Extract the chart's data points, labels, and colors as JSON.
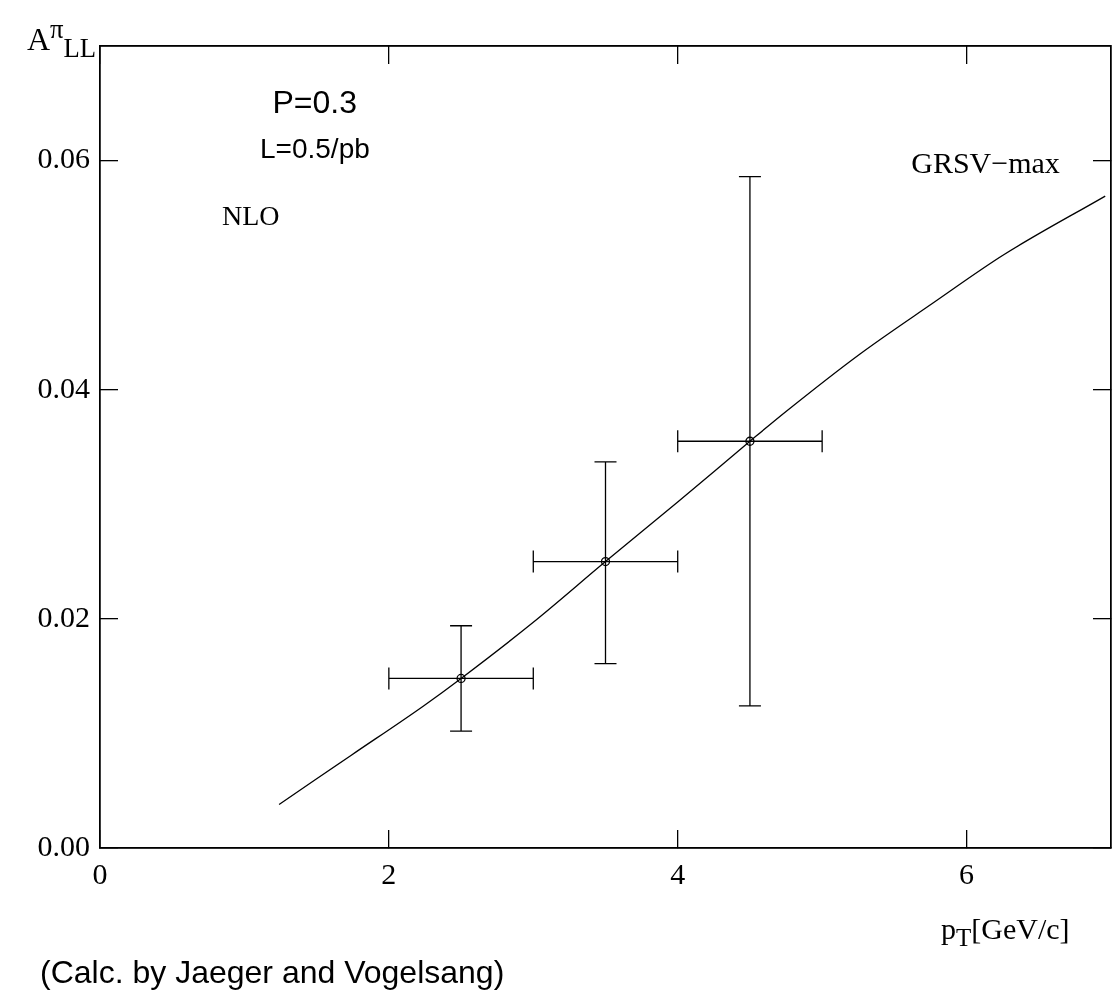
{
  "chart_data": {
    "type": "scatter",
    "xlabel": "p$_{T}$[GeV/c]",
    "ylabel": "A$^{π}$$_{LL}$",
    "xlim": [
      0,
      7
    ],
    "ylim": [
      0,
      0.07
    ],
    "xticks": [
      0,
      2,
      4,
      6
    ],
    "yticks": [
      {
        "value": 0,
        "label": "0.00"
      },
      {
        "value": 0.02,
        "label": "0.02"
      },
      {
        "value": 0.04,
        "label": "0.04"
      },
      {
        "value": 0.06,
        "label": "0.06"
      }
    ],
    "series": [
      {
        "type": "line",
        "name": "GRSV−max",
        "color": "#000000",
        "marker": "none",
        "line_style": "solid",
        "x": [
          1.24,
          1.74,
          2.24,
          2.5,
          3.0,
          3.5,
          4.0,
          4.5,
          4.75,
          5.26,
          5.76,
          6.26,
          6.96
        ],
        "values": [
          0.0038,
          0.0081,
          0.0124,
          0.0148,
          0.0197,
          0.025,
          0.0302,
          0.0355,
          0.0381,
          0.0431,
          0.0475,
          0.0518,
          0.0569
        ]
      },
      {
        "type": "scatter",
        "color": "#000000",
        "marker": "circle",
        "x": [
          2.5,
          3.5,
          4.5
        ],
        "values": [
          0.0148,
          0.025,
          0.0355
        ],
        "errors": [
          0.0046,
          [
            0.0161,
            0.0337
          ],
          [
            0.0124,
            0.0586
          ]
        ],
        "xerrors": [
          0.5,
          0.5,
          0.5
        ]
      }
    ],
    "annotations": [
      "P=0.3",
      "L=0.5/pb",
      "NLO",
      "(Calc. by Jaeger and Vogelsang)"
    ]
  }
}
